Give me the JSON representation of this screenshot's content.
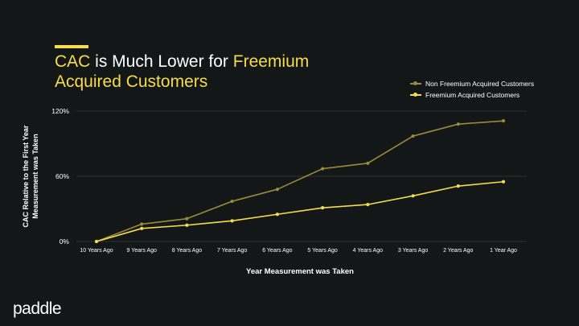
{
  "header": {
    "title_part1": "CAC",
    "title_part2": " is Much Lower for ",
    "title_part3": "Freemium Acquired Customers"
  },
  "brand": {
    "logo_text": "paddle"
  },
  "colors": {
    "background": "#131718",
    "accent": "#f7dc4c",
    "series_non_freemium": "#9a8a3a",
    "series_freemium": "#f7dc4c",
    "grid": "#2c3234"
  },
  "chart_data": {
    "type": "line",
    "title": "CAC is Much Lower for Freemium Acquired Customers",
    "xlabel": "Year Measurement was Taken",
    "ylabel": "CAC Relative to the First Year Measurement was Taken",
    "ylim": [
      0,
      120
    ],
    "yticks": [
      0,
      60,
      120
    ],
    "ytick_labels": [
      "0%",
      "60%",
      "120%"
    ],
    "categories": [
      "10 Years Ago",
      "9 Years Ago",
      "8 Years Ago",
      "7 Years Ago",
      "6 Years Ago",
      "5 Years Ago",
      "4 Years Ago",
      "3 Years Ago",
      "2 Years Ago",
      "1 Year Ago"
    ],
    "legend_position": "top-right",
    "series": [
      {
        "name": "Non Freemium Acquired Customers",
        "values": [
          0,
          16,
          21,
          37,
          48,
          67,
          72,
          97,
          108,
          111
        ]
      },
      {
        "name": "Freemium Acquired Customers",
        "values": [
          0,
          12,
          15,
          19,
          25,
          31,
          34,
          42,
          51,
          55
        ]
      }
    ]
  }
}
